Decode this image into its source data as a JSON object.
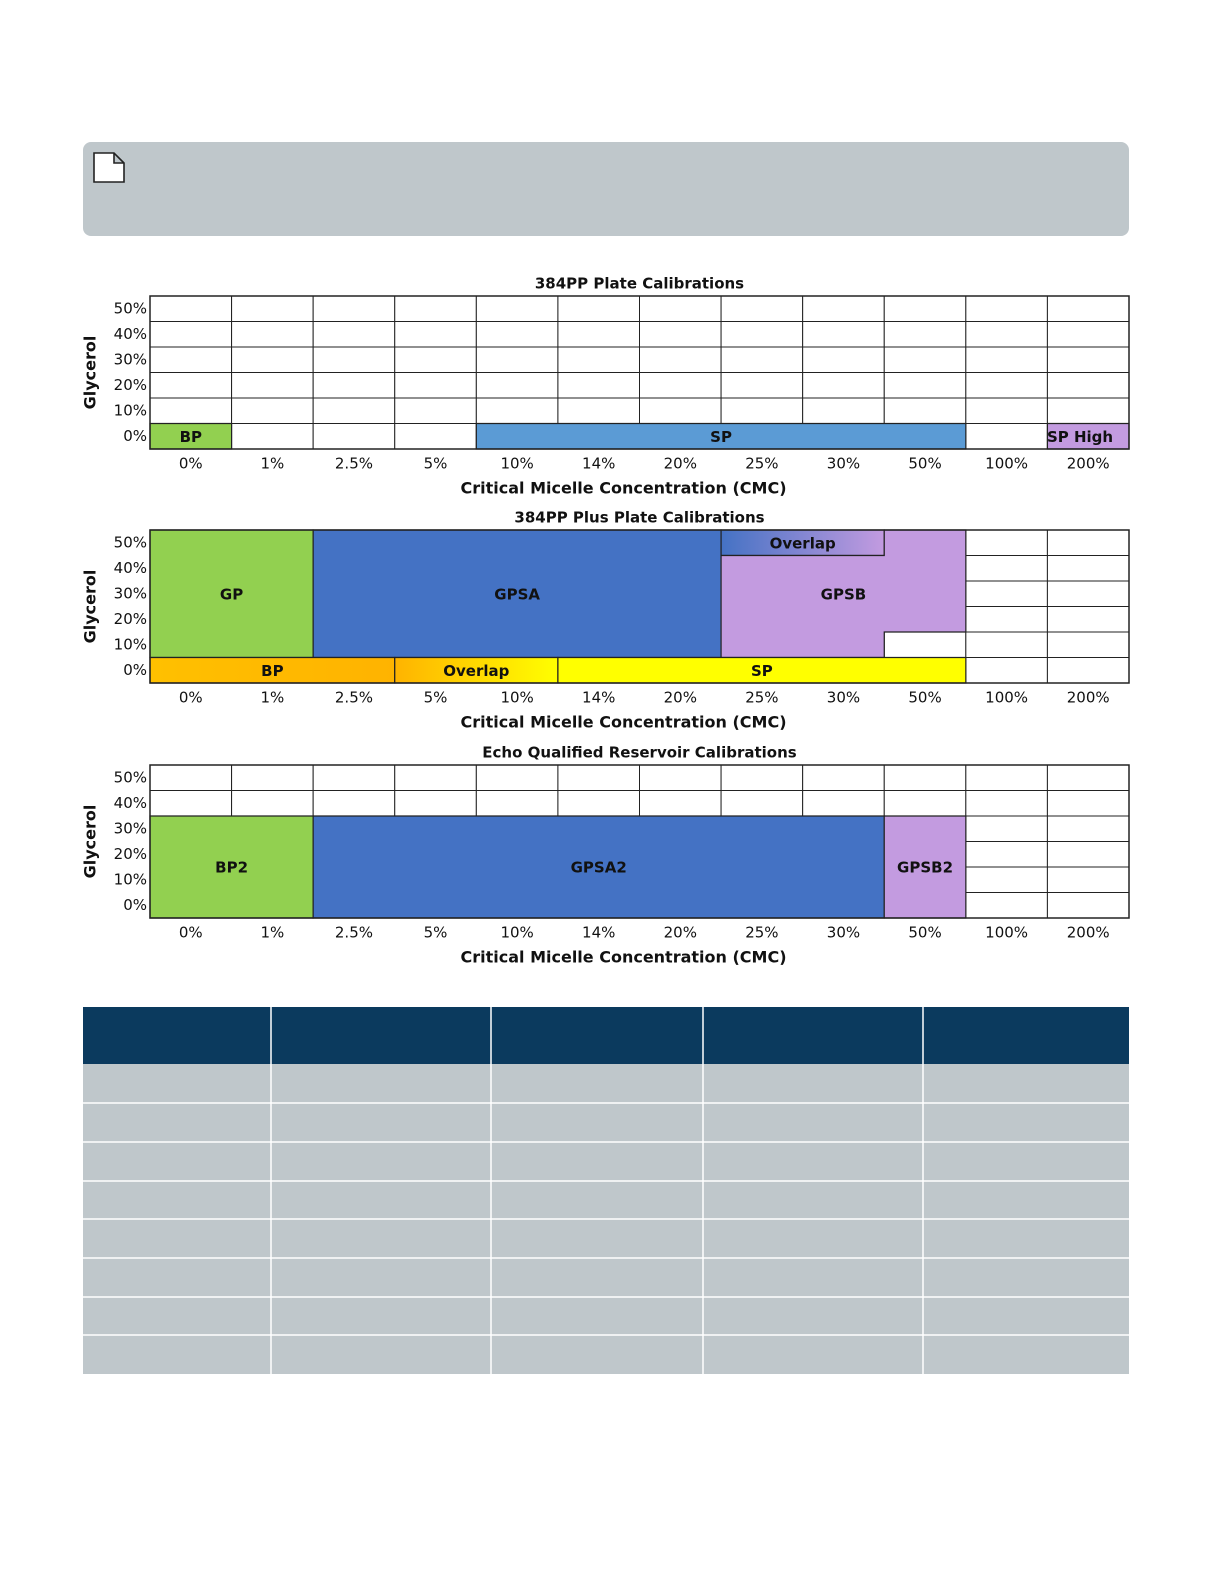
{
  "diagrams": [
    {
      "title": "384PP Plate Calibrations",
      "y_label": "Glycerol",
      "x_label": "Critical Micelle Concentration (CMC)",
      "y_ticks": [
        "50%",
        "40%",
        "30%",
        "20%",
        "10%",
        "0%"
      ],
      "x_ticks": [
        "0%",
        "1%",
        "2.5%",
        "5%",
        "10%",
        "14%",
        "20%",
        "25%",
        "30%",
        "50%",
        "100%",
        "200%"
      ],
      "regions": [
        {
          "label": "BP"
        },
        {
          "label": "SP"
        },
        {
          "label": "SP High"
        }
      ]
    },
    {
      "title": "384PP Plus Plate Calibrations",
      "y_label": "Glycerol",
      "x_label": "Critical Micelle Concentration (CMC)",
      "y_ticks": [
        "50%",
        "40%",
        "30%",
        "20%",
        "10%",
        "0%"
      ],
      "x_ticks": [
        "0%",
        "1%",
        "2.5%",
        "5%",
        "10%",
        "14%",
        "20%",
        "25%",
        "30%",
        "50%",
        "100%",
        "200%"
      ],
      "regions": [
        {
          "label": "GP"
        },
        {
          "label": "GPSA"
        },
        {
          "label": "Overlap"
        },
        {
          "label": "GPSB"
        },
        {
          "label": "BP"
        },
        {
          "label": "Overlap"
        },
        {
          "label": "SP"
        }
      ]
    },
    {
      "title": "Echo Qualified Reservoir Calibrations",
      "y_label": "Glycerol",
      "x_label": "Critical Micelle Concentration (CMC)",
      "y_ticks": [
        "50%",
        "40%",
        "30%",
        "20%",
        "10%",
        "0%"
      ],
      "x_ticks": [
        "0%",
        "1%",
        "2.5%",
        "5%",
        "10%",
        "14%",
        "20%",
        "25%",
        "30%",
        "50%",
        "100%",
        "200%"
      ],
      "regions": [
        {
          "label": "BP2"
        },
        {
          "label": "GPSA2"
        },
        {
          "label": "GPSB2"
        }
      ]
    }
  ]
}
